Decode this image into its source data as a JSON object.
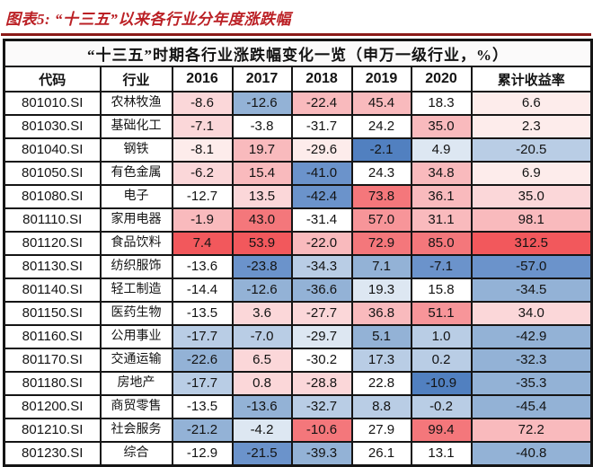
{
  "figure_title": "图表5:  “十三五”以来各行业分年度涨跌幅",
  "table_title": "“十三五”时期各行业涨跌幅变化一览（申万一级行业，%）",
  "headers": [
    "代码",
    "行业",
    "2016",
    "2017",
    "2018",
    "2019",
    "2020",
    "累计收益率"
  ],
  "palette": {
    "r5": "#f2585c",
    "r4": "#f4777b",
    "r3": "#f79599",
    "r2": "#f9babd",
    "r1": "#fbd7d9",
    "r0": "#fdeceb",
    "w": "#ffffff",
    "b1": "#dde7f2",
    "b2": "#b9cde5",
    "b3": "#93b2d6",
    "b4": "#6b93cb",
    "b5": "#5180c0"
  },
  "accent_colors": {
    "title_red": "#bb2025",
    "rule_maroon": "#8b1a18",
    "border_black": "#151515"
  },
  "rows": [
    {
      "code": "801010.SI",
      "industry": "农林牧渔",
      "values": [
        "-8.6",
        "-12.6",
        "-22.4",
        "45.4",
        "18.3",
        "6.6"
      ],
      "colors": [
        "r1",
        "b3",
        "r2",
        "r2",
        "w",
        "r0"
      ]
    },
    {
      "code": "801030.SI",
      "industry": "基础化工",
      "values": [
        "-7.1",
        "-3.8",
        "-31.7",
        "24.2",
        "35.0",
        "2.3"
      ],
      "colors": [
        "r1",
        "w",
        "w",
        "w",
        "r2",
        "r0"
      ]
    },
    {
      "code": "801040.SI",
      "industry": "钢铁",
      "values": [
        "-8.1",
        "19.7",
        "-29.6",
        "-2.1",
        "4.9",
        "-20.5"
      ],
      "colors": [
        "r0",
        "r2",
        "r0",
        "b5",
        "b1",
        "b2"
      ]
    },
    {
      "code": "801050.SI",
      "industry": "有色金属",
      "values": [
        "-6.2",
        "15.4",
        "-41.0",
        "24.3",
        "34.8",
        "6.9"
      ],
      "colors": [
        "r1",
        "r2",
        "b4",
        "w",
        "r2",
        "r0"
      ]
    },
    {
      "code": "801080.SI",
      "industry": "电子",
      "values": [
        "-12.7",
        "13.5",
        "-42.4",
        "73.8",
        "36.1",
        "35.0"
      ],
      "colors": [
        "w",
        "r1",
        "b4",
        "r4",
        "r2",
        "r1"
      ]
    },
    {
      "code": "801110.SI",
      "industry": "家用电器",
      "values": [
        "-1.9",
        "43.0",
        "-31.4",
        "57.0",
        "31.1",
        "98.1"
      ],
      "colors": [
        "r2",
        "r4",
        "w",
        "r3",
        "r2",
        "r2"
      ]
    },
    {
      "code": "801120.SI",
      "industry": "食品饮料",
      "values": [
        "7.4",
        "53.9",
        "-22.0",
        "72.9",
        "85.0",
        "312.5"
      ],
      "colors": [
        "r5",
        "r5",
        "r2",
        "r4",
        "r4",
        "r5"
      ]
    },
    {
      "code": "801130.SI",
      "industry": "纺织服饰",
      "values": [
        "-13.6",
        "-23.8",
        "-34.3",
        "7.1",
        "-7.1",
        "-57.0"
      ],
      "colors": [
        "w",
        "b4",
        "b2",
        "b3",
        "b4",
        "b4"
      ]
    },
    {
      "code": "801140.SI",
      "industry": "轻工制造",
      "values": [
        "-14.4",
        "-12.6",
        "-36.6",
        "19.3",
        "15.8",
        "-34.5"
      ],
      "colors": [
        "w",
        "b3",
        "b3",
        "b1",
        "w",
        "b3"
      ]
    },
    {
      "code": "801150.SI",
      "industry": "医药生物",
      "values": [
        "-13.5",
        "3.6",
        "-27.7",
        "36.8",
        "51.1",
        "34.0"
      ],
      "colors": [
        "w",
        "r1",
        "r1",
        "r2",
        "r3",
        "r1"
      ]
    },
    {
      "code": "801160.SI",
      "industry": "公用事业",
      "values": [
        "-17.7",
        "-7.0",
        "-29.7",
        "5.1",
        "1.0",
        "-42.9"
      ],
      "colors": [
        "b2",
        "b2",
        "b1",
        "b3",
        "b2",
        "b3"
      ]
    },
    {
      "code": "801170.SI",
      "industry": "交通运输",
      "values": [
        "-22.6",
        "6.5",
        "-30.2",
        "17.3",
        "0.2",
        "-32.3"
      ],
      "colors": [
        "b3",
        "r1",
        "w",
        "b2",
        "b2",
        "b3"
      ]
    },
    {
      "code": "801180.SI",
      "industry": "房地产",
      "values": [
        "-17.7",
        "0.8",
        "-28.8",
        "22.8",
        "-10.9",
        "-35.3"
      ],
      "colors": [
        "b2",
        "r1",
        "r1",
        "w",
        "b5",
        "b3"
      ]
    },
    {
      "code": "801200.SI",
      "industry": "商贸零售",
      "values": [
        "-13.5",
        "-13.6",
        "-32.7",
        "8.8",
        "-0.2",
        "-45.4"
      ],
      "colors": [
        "w",
        "b3",
        "b2",
        "b2",
        "b2",
        "b3"
      ]
    },
    {
      "code": "801210.SI",
      "industry": "社会服务",
      "values": [
        "-21.2",
        "-4.2",
        "-10.6",
        "27.9",
        "99.4",
        "72.2"
      ],
      "colors": [
        "b3",
        "b1",
        "r4",
        "w",
        "r4",
        "r2"
      ]
    },
    {
      "code": "801230.SI",
      "industry": "综合",
      "values": [
        "-12.9",
        "-21.5",
        "-39.3",
        "26.1",
        "13.1",
        "-40.8"
      ],
      "colors": [
        "w",
        "b4",
        "b3",
        "w",
        "w",
        "b3"
      ]
    }
  ],
  "chart_data": {
    "type": "table",
    "title": "“十三五”时期各行业涨跌幅变化一览（申万一级行业，%）",
    "columns": [
      "代码",
      "行业",
      "2016",
      "2017",
      "2018",
      "2019",
      "2020",
      "累计收益率"
    ],
    "rows": [
      [
        "801010.SI",
        "农林牧渔",
        -8.6,
        -12.6,
        -22.4,
        45.4,
        18.3,
        6.6
      ],
      [
        "801030.SI",
        "基础化工",
        -7.1,
        -3.8,
        -31.7,
        24.2,
        35.0,
        2.3
      ],
      [
        "801040.SI",
        "钢铁",
        -8.1,
        19.7,
        -29.6,
        -2.1,
        4.9,
        -20.5
      ],
      [
        "801050.SI",
        "有色金属",
        -6.2,
        15.4,
        -41.0,
        24.3,
        34.8,
        6.9
      ],
      [
        "801080.SI",
        "电子",
        -12.7,
        13.5,
        -42.4,
        73.8,
        36.1,
        35.0
      ],
      [
        "801110.SI",
        "家用电器",
        -1.9,
        43.0,
        -31.4,
        57.0,
        31.1,
        98.1
      ],
      [
        "801120.SI",
        "食品饮料",
        7.4,
        53.9,
        -22.0,
        72.9,
        85.0,
        312.5
      ],
      [
        "801130.SI",
        "纺织服饰",
        -13.6,
        -23.8,
        -34.3,
        7.1,
        -7.1,
        -57.0
      ],
      [
        "801140.SI",
        "轻工制造",
        -14.4,
        -12.6,
        -36.6,
        19.3,
        15.8,
        -34.5
      ],
      [
        "801150.SI",
        "医药生物",
        -13.5,
        3.6,
        -27.7,
        36.8,
        51.1,
        34.0
      ],
      [
        "801160.SI",
        "公用事业",
        -17.7,
        -7.0,
        -29.7,
        5.1,
        1.0,
        -42.9
      ],
      [
        "801170.SI",
        "交通运输",
        -22.6,
        6.5,
        -30.2,
        17.3,
        0.2,
        -32.3
      ],
      [
        "801180.SI",
        "房地产",
        -17.7,
        0.8,
        -28.8,
        22.8,
        -10.9,
        -35.3
      ],
      [
        "801200.SI",
        "商贸零售",
        -13.5,
        -13.6,
        -32.7,
        8.8,
        -0.2,
        -45.4
      ],
      [
        "801210.SI",
        "社会服务",
        -21.2,
        -4.2,
        -10.6,
        27.9,
        99.4,
        72.2
      ],
      [
        "801230.SI",
        "综合",
        -12.9,
        -21.5,
        -39.3,
        26.1,
        13.1,
        -40.8
      ]
    ],
    "legend": "heatmap shading: red = larger gains, blue = larger losses"
  }
}
